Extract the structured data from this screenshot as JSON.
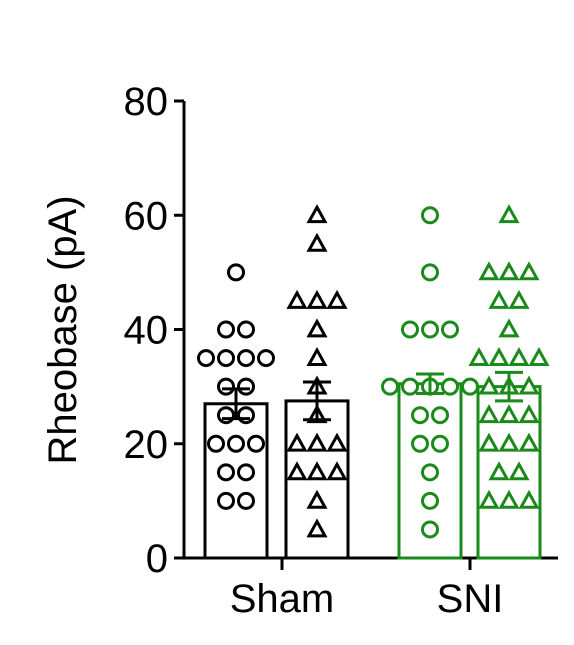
{
  "chart_data": {
    "type": "bar",
    "ylabel": "Rheobase (pA)",
    "ylim": [
      0,
      80
    ],
    "yticks": [
      0,
      20,
      40,
      60,
      80
    ],
    "groups": [
      "Sham",
      "SNI"
    ],
    "colors": {
      "Sham": "#000000",
      "SNI": "#1a8a1a"
    },
    "bars": [
      {
        "group": "Sham",
        "marker": "circle",
        "mean": 27,
        "sem": 2.6,
        "points": [
          50,
          40,
          40,
          35,
          35,
          35,
          35,
          30,
          30,
          25,
          25,
          20,
          20,
          20,
          15,
          15,
          10,
          10
        ]
      },
      {
        "group": "Sham",
        "marker": "triangle",
        "mean": 27.5,
        "sem": 3.3,
        "points": [
          60,
          55,
          45,
          45,
          45,
          40,
          35,
          30,
          25,
          20,
          20,
          20,
          15,
          15,
          15,
          10,
          5
        ]
      },
      {
        "group": "SNI",
        "marker": "circle",
        "mean": 30.5,
        "sem": 1.7,
        "points": [
          60,
          50,
          40,
          40,
          40,
          30,
          30,
          30,
          30,
          30,
          25,
          25,
          20,
          20,
          15,
          10,
          5
        ]
      },
      {
        "group": "SNI",
        "marker": "triangle",
        "mean": 30,
        "sem": 2.5,
        "points": [
          60,
          50,
          50,
          50,
          45,
          45,
          40,
          35,
          35,
          35,
          35,
          30,
          30,
          30,
          25,
          25,
          25,
          20,
          20,
          20,
          15,
          15,
          10,
          10,
          10
        ]
      }
    ]
  }
}
